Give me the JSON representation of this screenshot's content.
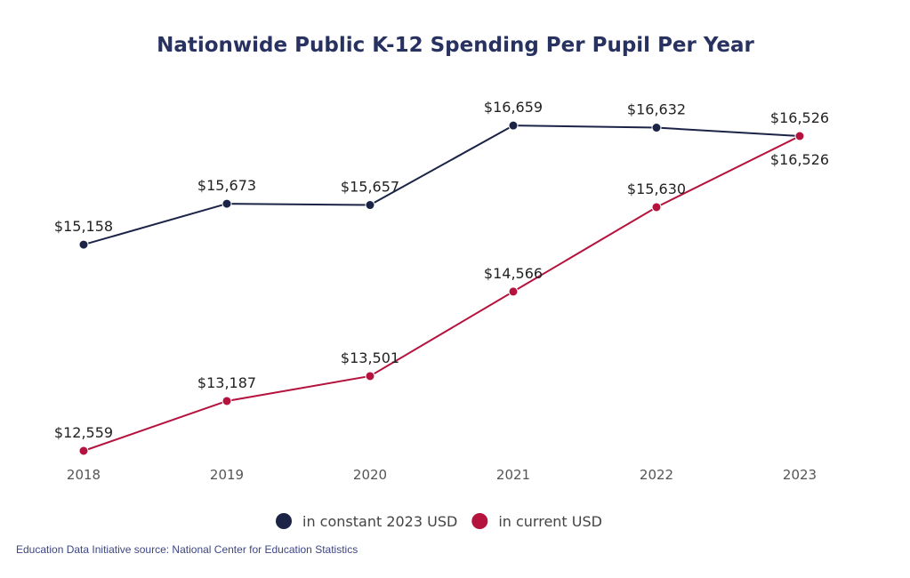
{
  "chart_data": {
    "type": "line",
    "title": "Nationwide Public K-12 Spending Per Pupil Per Year",
    "xlabel": "",
    "ylabel": "",
    "categories": [
      "2018",
      "2019",
      "2020",
      "2021",
      "2022",
      "2023"
    ],
    "series": [
      {
        "name": "in constant 2023 USD",
        "color": "#1b2447",
        "values": [
          15158,
          15673,
          15657,
          16659,
          16632,
          16526
        ],
        "labels": [
          "$15,158",
          "$15,673",
          "$15,657",
          "$16,659",
          "$16,632",
          "$16,526"
        ]
      },
      {
        "name": "in current USD",
        "color": "#b5123e",
        "values": [
          12559,
          13187,
          13501,
          14566,
          15630,
          16526
        ],
        "labels": [
          "$12,559",
          "$13,187",
          "$13,501",
          "$14,566",
          "$15,630",
          "$16,526"
        ]
      }
    ],
    "ylim": [
      12559,
      16526
    ],
    "grid": false,
    "legend_position": "bottom"
  },
  "source": "Education Data Initiative source: National Center for Education Statistics"
}
